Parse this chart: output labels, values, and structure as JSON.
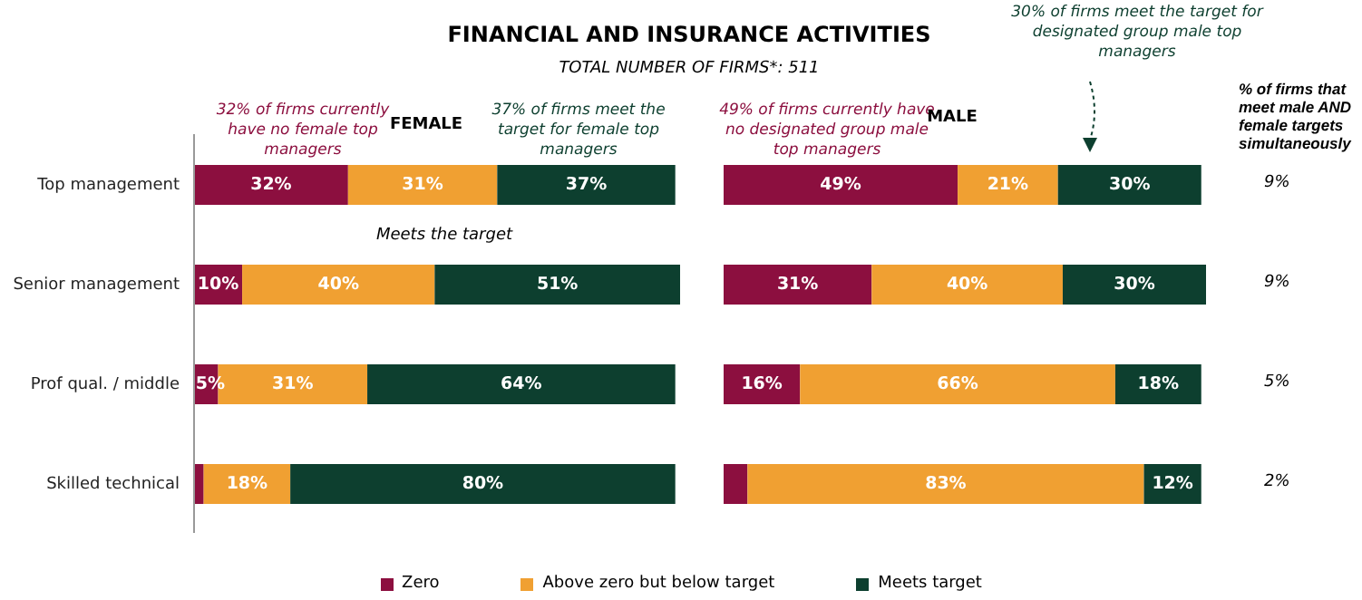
{
  "chart_data": [
    {
      "type": "bar",
      "orientation": "horizontal",
      "stacked": true,
      "title": "FINANCIAL AND INSURANCE ACTIVITIES",
      "subtitle": "TOTAL NUMBER OF FIRMS*: 511",
      "categories": [
        "Top management",
        "Senior management",
        "Prof qual. / middle",
        "Skilled technical"
      ],
      "xlim": [
        0,
        101
      ],
      "tick_labels": "y",
      "legend": "bottom",
      "annotations": [
        "32% of firms currently have no female top managers",
        "FEMALE",
        "37% of firms meet the target for female top managers",
        "Meets the target"
      ],
      "series": [
        {
          "name": "Zero",
          "color": "#8c0f3f",
          "values": [
            32,
            10,
            5,
            2
          ],
          "value_labels": [
            "32%",
            "10%",
            "5%",
            null
          ]
        },
        {
          "name": "Above zero but below target",
          "color": "#f0a032",
          "values": [
            31,
            40,
            31,
            18
          ],
          "value_labels": [
            "31%",
            "40%",
            "31%",
            "18%"
          ]
        },
        {
          "name": "Meets target",
          "color": "#0d3f2f",
          "values": [
            37,
            51,
            64,
            80
          ],
          "value_labels": [
            "37%",
            "51%",
            "64%",
            "80%"
          ]
        }
      ]
    },
    {
      "type": "bar",
      "orientation": "horizontal",
      "stacked": true,
      "categories": [
        null,
        null,
        null,
        null
      ],
      "xlim": [
        0,
        101
      ],
      "tick_labels": false,
      "annotations": [
        "49% of firms currently have no designated group male top managers",
        "MALE",
        "30% of firms meet the target for designated group male top managers"
      ],
      "series": [
        {
          "color": "#8c0f3f",
          "values": [
            49,
            31,
            16,
            5
          ],
          "value_labels": [
            "49%",
            "31%",
            "16%",
            null
          ]
        },
        {
          "color": "#f0a032",
          "values": [
            21,
            40,
            66,
            83
          ],
          "value_labels": [
            "21%",
            "40%",
            "66%",
            "83%"
          ]
        },
        {
          "color": "#0d3f2f",
          "values": [
            30,
            30,
            18,
            12
          ],
          "value_labels": [
            "30%",
            "30%",
            "18%",
            "12%"
          ]
        }
      ]
    },
    {
      "type": "other",
      "title": "% of firms that meet male AND female targets simultaneously",
      "annotations": [
        "9%",
        "9%",
        "5%",
        "2%"
      ]
    }
  ]
}
